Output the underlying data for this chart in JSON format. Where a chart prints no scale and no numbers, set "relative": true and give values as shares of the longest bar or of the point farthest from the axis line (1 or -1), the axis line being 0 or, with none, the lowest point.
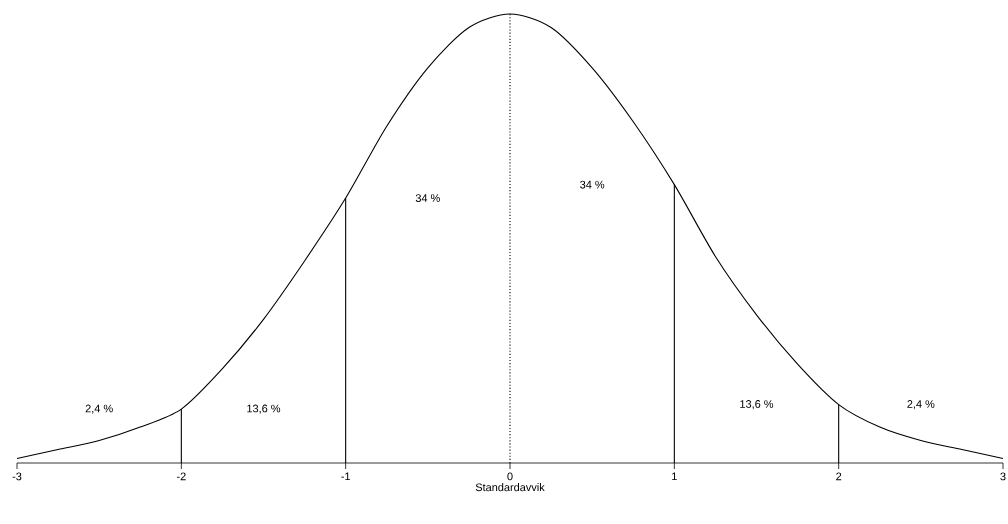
{
  "chart_data": {
    "type": "line",
    "relative": true,
    "xlabel": "Standardavvik",
    "xlim": [
      -3,
      3
    ],
    "xticks": [
      -3,
      -2,
      -1,
      0,
      1,
      2,
      3
    ],
    "marker": "none",
    "line_style": "solid",
    "x": [
      -3,
      -2.75,
      -2.5,
      -2.25,
      -2,
      -1.75,
      -1.5,
      -1.25,
      -1,
      -0.75,
      -0.5,
      -0.25,
      0,
      0.25,
      0.5,
      0.75,
      1,
      1.25,
      1.5,
      1.75,
      2,
      2.25,
      2.5,
      2.75,
      3
    ],
    "series": [
      {
        "color": "#000000",
        "values": [
          0.01,
          0.03,
          0.05,
          0.08,
          0.12,
          0.21,
          0.32,
          0.45,
          0.59,
          0.75,
          0.88,
          0.97,
          1.0,
          0.97,
          0.88,
          0.76,
          0.62,
          0.46,
          0.33,
          0.22,
          0.13,
          0.08,
          0.05,
          0.03,
          0.01
        ]
      }
    ],
    "ref_lines": [
      {
        "axis": "x",
        "value": -2,
        "color": "#000000",
        "line_style": "solid"
      },
      {
        "axis": "x",
        "value": -1,
        "color": "#000000",
        "line_style": "solid"
      },
      {
        "axis": "x",
        "value": 0,
        "color": "#000000",
        "line_style": "dotted"
      },
      {
        "axis": "x",
        "value": 1,
        "color": "#000000",
        "line_style": "solid"
      },
      {
        "axis": "x",
        "value": 2,
        "color": "#000000",
        "line_style": "solid"
      }
    ],
    "annotations": [
      "2,4 %",
      "13,6 %",
      "34 %",
      "34 %",
      "13,6 %",
      "2,4 %"
    ]
  }
}
